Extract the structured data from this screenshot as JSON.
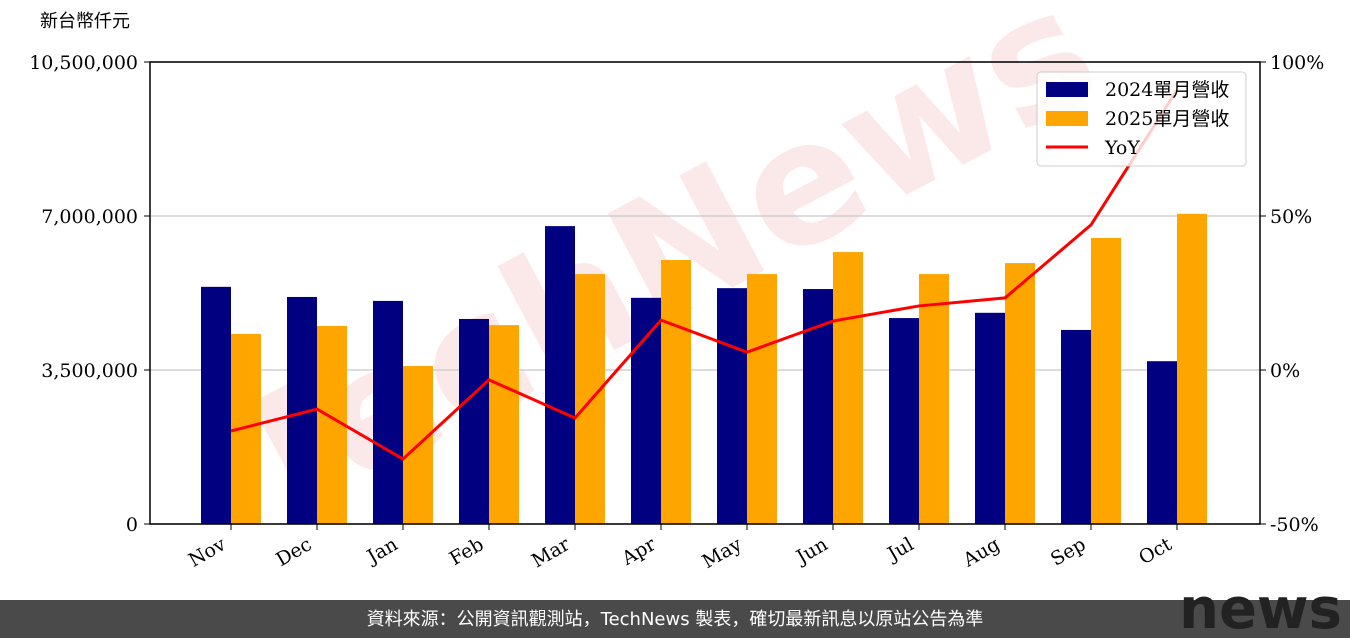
{
  "chart_data": {
    "type": "bar_line",
    "y_label": "新台幣仟元",
    "watermark": "TechNews",
    "categories": [
      "Nov",
      "Dec",
      "Jan",
      "Feb",
      "Mar",
      "Apr",
      "May",
      "Jun",
      "Jul",
      "Aug",
      "Sep",
      "Oct"
    ],
    "series": [
      {
        "name": "2024單月營收",
        "color": "#000080",
        "type": "bar",
        "values": [
          5390000,
          5160000,
          5070000,
          4660000,
          6770000,
          5140000,
          5360000,
          5340000,
          4680000,
          4800000,
          4410000,
          3700000
        ]
      },
      {
        "name": "2025單月營收",
        "color": "#ffa500",
        "type": "bar",
        "values": [
          4320000,
          4500000,
          3590000,
          4520000,
          5680000,
          6000000,
          5680000,
          6180000,
          5680000,
          5930000,
          6500000,
          7050000
        ]
      },
      {
        "name": "YoY",
        "color": "#ff0000",
        "type": "line",
        "axis": "y2",
        "values": [
          -19.8,
          -12.7,
          -28.9,
          -3.2,
          -15.6,
          16.2,
          5.8,
          15.9,
          20.8,
          23.4,
          47.1,
          90.9
        ]
      }
    ],
    "ylim": [
      0,
      10500000
    ],
    "yticks": [
      0,
      {
        "value": 3500000,
        "label": "3,500,000"
      },
      {
        "value": 7000000,
        "label": "7,000,000"
      },
      {
        "value": 10500000,
        "label": "10,500,000"
      }
    ],
    "y2lim": [
      -50,
      100
    ],
    "y2ticks": [
      {
        "value": -50,
        "label": "-50%"
      },
      {
        "value": 0,
        "label": "0%"
      },
      {
        "value": 50,
        "label": "50%"
      },
      {
        "value": 100,
        "label": "100%"
      }
    ],
    "grid": true,
    "legend": "upper right"
  },
  "footer": {
    "source": "資料來源：公開資訊觀測站，TechNews 製表，確切最新訊息以原站公告為準",
    "logo": "news"
  }
}
